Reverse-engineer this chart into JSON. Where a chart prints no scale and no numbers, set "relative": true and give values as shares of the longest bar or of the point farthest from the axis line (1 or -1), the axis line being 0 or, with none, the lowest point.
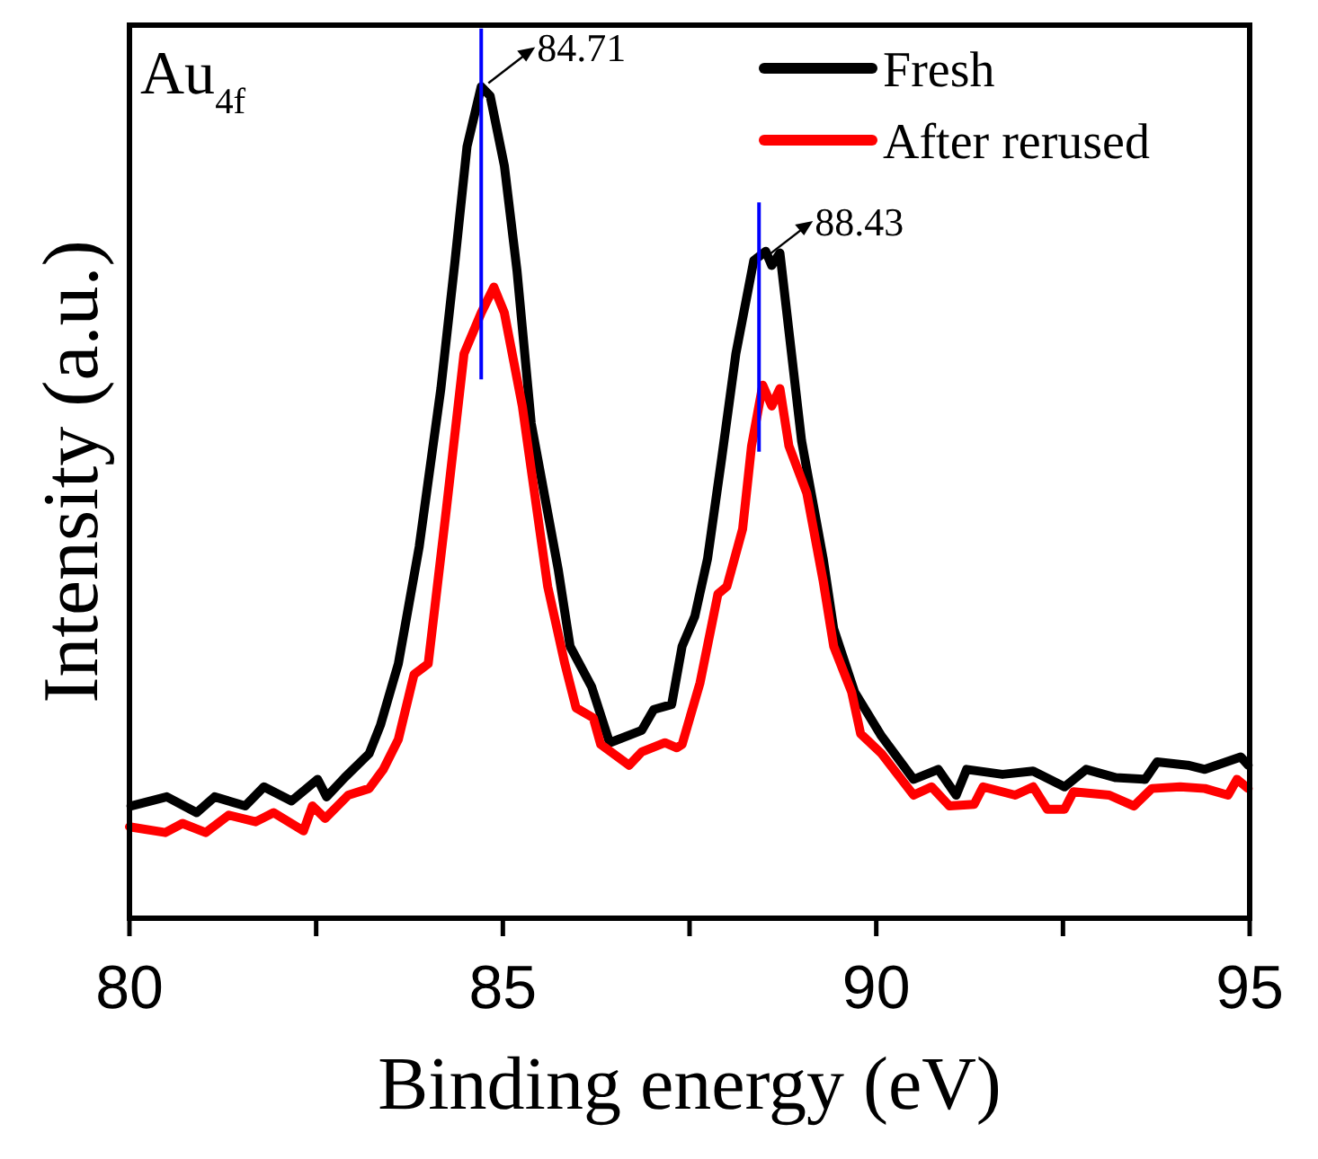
{
  "chart_data": {
    "type": "line",
    "relative": true,
    "xlabel": "Binding energy (eV)",
    "ylabel": "Intensity (a.u.)",
    "annotations": [
      "Au$_{4f}$"
    ],
    "xlim": [
      80,
      95
    ],
    "xticks": [
      80,
      {
        "value": 82.5,
        "label": null
      },
      85,
      {
        "value": 87.5,
        "label": null
      },
      90,
      {
        "value": 92.5,
        "label": null
      },
      95
    ],
    "legend": "top right",
    "grid": false,
    "marker": "none",
    "line_style": "solid",
    "ref_lines": [
      {
        "axis": "x",
        "value": 84.71,
        "label": "84.71",
        "color": "#0000ff"
      },
      {
        "axis": "x",
        "value": 88.43,
        "label": "88.43",
        "color": "#0000ff"
      }
    ],
    "series": [
      {
        "name": "Fresh",
        "color": "#000000",
        "x": [
          80.02,
          80.5,
          80.9,
          81.14,
          81.55,
          81.8,
          82.17,
          82.52,
          82.64,
          82.88,
          83.21,
          83.36,
          83.6,
          83.88,
          84.17,
          84.36,
          84.52,
          84.71,
          84.83,
          85.02,
          85.19,
          85.38,
          85.74,
          85.9,
          86.19,
          86.43,
          86.86,
          87.02,
          87.26,
          87.4,
          87.57,
          87.74,
          87.93,
          88.12,
          88.36,
          88.52,
          88.6,
          88.71,
          89.0,
          89.29,
          89.43,
          89.71,
          90.07,
          90.5,
          90.83,
          91.07,
          91.21,
          91.69,
          92.1,
          92.52,
          92.81,
          93.21,
          93.6,
          93.76,
          94.17,
          94.4,
          94.88,
          94.98
        ],
        "values": [
          0.135,
          0.146,
          0.127,
          0.146,
          0.135,
          0.158,
          0.141,
          0.167,
          0.146,
          0.169,
          0.198,
          0.232,
          0.306,
          0.447,
          0.637,
          0.791,
          0.928,
          1,
          0.989,
          0.905,
          0.778,
          0.595,
          0.42,
          0.327,
          0.278,
          0.211,
          0.226,
          0.251,
          0.257,
          0.327,
          0.363,
          0.432,
          0.553,
          0.679,
          0.791,
          0.802,
          0.785,
          0.8,
          0.574,
          0.432,
          0.348,
          0.272,
          0.219,
          0.167,
          0.179,
          0.148,
          0.179,
          0.173,
          0.177,
          0.158,
          0.179,
          0.169,
          0.167,
          0.188,
          0.184,
          0.179,
          0.194,
          0.184
        ]
      },
      {
        "name": "After rerused",
        "color": "#ff0000",
        "x": [
          80.0,
          80.48,
          80.71,
          81.02,
          81.33,
          81.69,
          81.93,
          82.33,
          82.45,
          82.62,
          82.93,
          83.21,
          83.4,
          83.6,
          83.81,
          84.0,
          84.24,
          84.48,
          84.71,
          84.88,
          85.02,
          85.26,
          85.6,
          85.83,
          85.98,
          86.21,
          86.31,
          86.69,
          86.86,
          87.17,
          87.33,
          87.4,
          87.64,
          87.88,
          88.0,
          88.21,
          88.33,
          88.48,
          88.6,
          88.71,
          88.83,
          89.07,
          89.29,
          89.43,
          89.67,
          89.79,
          90.07,
          90.5,
          90.74,
          90.98,
          91.31,
          91.43,
          91.86,
          92.1,
          92.29,
          92.52,
          92.64,
          93.12,
          93.45,
          93.69,
          94.07,
          94.4,
          94.71,
          94.83,
          94.98
        ],
        "values": [
          0.11,
          0.103,
          0.114,
          0.103,
          0.124,
          0.116,
          0.127,
          0.105,
          0.135,
          0.12,
          0.148,
          0.156,
          0.179,
          0.215,
          0.293,
          0.306,
          0.489,
          0.679,
          0.728,
          0.759,
          0.728,
          0.616,
          0.399,
          0.306,
          0.253,
          0.241,
          0.209,
          0.184,
          0.2,
          0.211,
          0.205,
          0.209,
          0.283,
          0.39,
          0.399,
          0.468,
          0.568,
          0.641,
          0.616,
          0.637,
          0.568,
          0.511,
          0.405,
          0.327,
          0.272,
          0.222,
          0.198,
          0.148,
          0.158,
          0.135,
          0.137,
          0.158,
          0.148,
          0.158,
          0.131,
          0.131,
          0.152,
          0.148,
          0.135,
          0.156,
          0.158,
          0.156,
          0.148,
          0.167,
          0.156
        ]
      }
    ]
  }
}
